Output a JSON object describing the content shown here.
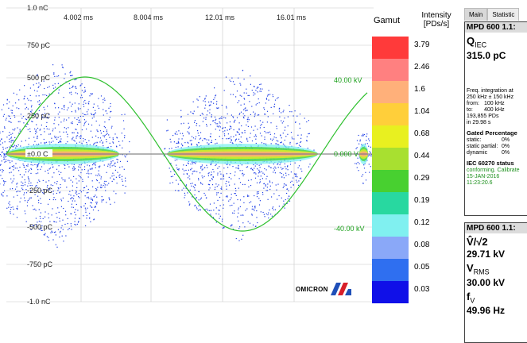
{
  "plot": {
    "y_ticks": [
      "1.0 nC",
      "750 pC",
      "500 pC",
      "250 pC",
      "±0.0 C",
      "-250 pC",
      "-500 pC",
      "-750 pC",
      "-1.0 nC"
    ],
    "x_ticks": [
      "4.002 ms",
      "8.004 ms",
      "12.01 ms",
      "16.01 ms"
    ],
    "voltage_labels": [
      "40.00 kV",
      "0.000 V",
      "-40.00 kV"
    ],
    "colors": {
      "sine": "#2ec02e",
      "grid": "#c8c8c8",
      "scatter": "#1f3fe6"
    }
  },
  "gamut": {
    "title": "Gamut",
    "intensity_title": "Intensity",
    "intensity_unit": "[PDs/s]",
    "levels": [
      {
        "value": "3.79",
        "color": "#ff3a3a"
      },
      {
        "value": "2.46",
        "color": "#ff8080"
      },
      {
        "value": "1.6",
        "color": "#ffb07a"
      },
      {
        "value": "1.04",
        "color": "#ffcf3a"
      },
      {
        "value": "0.68",
        "color": "#e8f020"
      },
      {
        "value": "0.44",
        "color": "#a8e030"
      },
      {
        "value": "0.29",
        "color": "#48d030"
      },
      {
        "value": "0.19",
        "color": "#28d8a0"
      },
      {
        "value": "0.12",
        "color": "#80f0f0"
      },
      {
        "value": "0.08",
        "color": "#8aa8f8"
      },
      {
        "value": "0.05",
        "color": "#2f6ff0"
      },
      {
        "value": "0.03",
        "color": "#1010e8"
      }
    ]
  },
  "tabs": [
    {
      "label": "Main",
      "active": true
    },
    {
      "label": "Statistic",
      "active": false
    }
  ],
  "panel1": {
    "header": "MPD 600 1.1:",
    "q_label": "Q",
    "q_sub": "IEC",
    "q_value": "315.0 pC",
    "freq_title": "Freq. integration at",
    "freq_line": "250 kHz ± 150 kHz",
    "from_label": "from:",
    "from_value": "100 kHz",
    "to_label": "to:",
    "to_value": "400 kHz",
    "pd_count": "193,855 PDs",
    "duration": "in 29.98 s",
    "gated_title": "Gated Percentage",
    "gated_rows": [
      {
        "label": "static:",
        "value": "0%"
      },
      {
        "label": "static partial:",
        "value": "0%"
      },
      {
        "label": "dynamic",
        "value": "0%"
      }
    ],
    "iec_title": "IEC 60270 status",
    "status_text": "conforming. Calibrate",
    "status_date": "15-JAN-2016",
    "status_time": "11:23:20.6"
  },
  "panel2": {
    "header": "MPD 600 1.1:",
    "v_peak_label": "V̂/√2",
    "v_peak_value": "29.71 kV",
    "v_rms_label": "V",
    "v_rms_sub": "RMS",
    "v_rms_value": "30.00 kV",
    "f_label": "f",
    "f_sub": "V",
    "f_value": "49.96 Hz"
  },
  "logo": {
    "text": "OMICRON"
  }
}
